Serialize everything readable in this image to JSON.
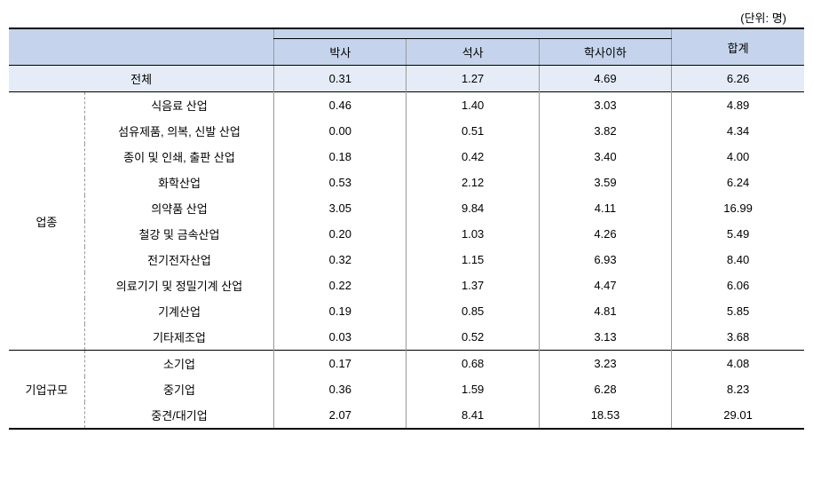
{
  "unit_label": "(단위: 명)",
  "columns": {
    "col1": "박사",
    "col2": "석사",
    "col3": "학사이하",
    "total": "합계"
  },
  "total_row": {
    "label": "전체",
    "col1": "0.31",
    "col2": "1.27",
    "col3": "4.69",
    "total": "6.26"
  },
  "groups": [
    {
      "label": "업종",
      "rows": [
        {
          "label": "식음료 산업",
          "col1": "0.46",
          "col2": "1.40",
          "col3": "3.03",
          "total": "4.89"
        },
        {
          "label": "섬유제품, 의복, 신발 산업",
          "col1": "0.00",
          "col2": "0.51",
          "col3": "3.82",
          "total": "4.34"
        },
        {
          "label": "종이 및 인쇄, 출판 산업",
          "col1": "0.18",
          "col2": "0.42",
          "col3": "3.40",
          "total": "4.00"
        },
        {
          "label": "화학산업",
          "col1": "0.53",
          "col2": "2.12",
          "col3": "3.59",
          "total": "6.24"
        },
        {
          "label": "의약품 산업",
          "col1": "3.05",
          "col2": "9.84",
          "col3": "4.11",
          "total": "16.99"
        },
        {
          "label": "철강 및 금속산업",
          "col1": "0.20",
          "col2": "1.03",
          "col3": "4.26",
          "total": "5.49"
        },
        {
          "label": "전기전자산업",
          "col1": "0.32",
          "col2": "1.15",
          "col3": "6.93",
          "total": "8.40"
        },
        {
          "label": "의료기기 및 정밀기계 산업",
          "col1": "0.22",
          "col2": "1.37",
          "col3": "4.47",
          "total": "6.06"
        },
        {
          "label": "기계산업",
          "col1": "0.19",
          "col2": "0.85",
          "col3": "4.81",
          "total": "5.85"
        },
        {
          "label": "기타제조업",
          "col1": "0.03",
          "col2": "0.52",
          "col3": "3.13",
          "total": "3.68"
        }
      ]
    },
    {
      "label": "기업규모",
      "rows": [
        {
          "label": "소기업",
          "col1": "0.17",
          "col2": "0.68",
          "col3": "3.23",
          "total": "4.08"
        },
        {
          "label": "중기업",
          "col1": "0.36",
          "col2": "1.59",
          "col3": "6.28",
          "total": "8.23"
        },
        {
          "label": "중견/대기업",
          "col1": "2.07",
          "col2": "8.41",
          "col3": "18.53",
          "total": "29.01"
        }
      ]
    }
  ],
  "styling": {
    "header_bg": "#c5d4ec",
    "total_bg": "#e5ecf7",
    "border_color": "#000000",
    "light_border": "#999999",
    "font_size": 13,
    "background": "#ffffff"
  }
}
